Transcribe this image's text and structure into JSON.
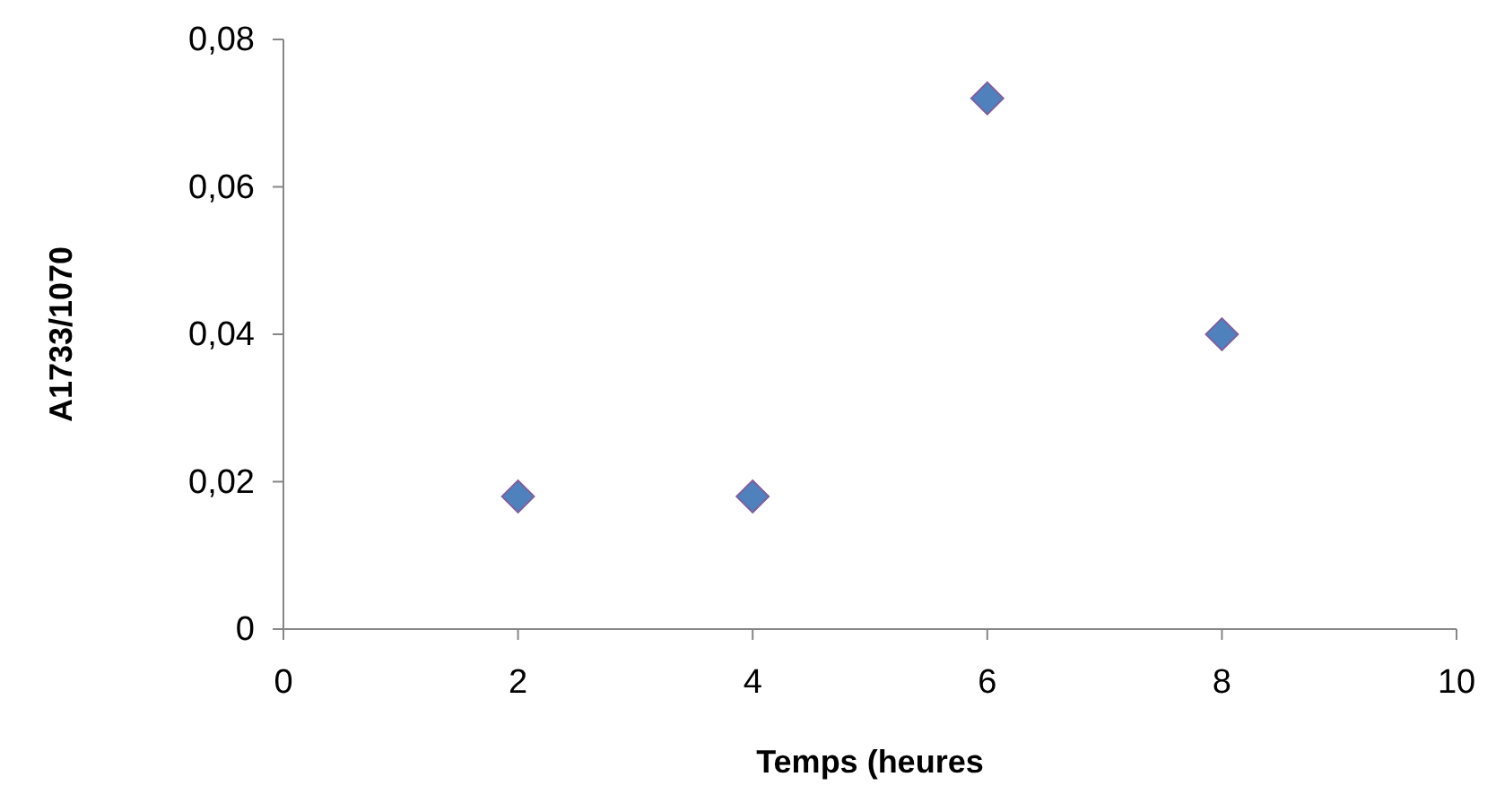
{
  "chart_data": {
    "type": "scatter",
    "xlabel": "Temps (heures",
    "ylabel": "A1733/1070",
    "x": [
      2,
      4,
      6,
      8
    ],
    "series": [
      {
        "color": "#4f81bd",
        "values": [
          0.018,
          0.018,
          0.072,
          0.04
        ]
      }
    ],
    "xlim": [
      0,
      10
    ],
    "xticks": [
      0,
      2,
      4,
      6,
      8,
      10
    ],
    "ylim": [
      0,
      0.08
    ],
    "yticks": [
      0,
      {
        "value": 0.02,
        "label": "0,02"
      },
      {
        "value": 0.04,
        "label": "0,04"
      },
      {
        "value": 0.06,
        "label": "0,06"
      },
      {
        "value": 0.08,
        "label": "0,08"
      }
    ],
    "marker": "diamond",
    "grid": false
  }
}
